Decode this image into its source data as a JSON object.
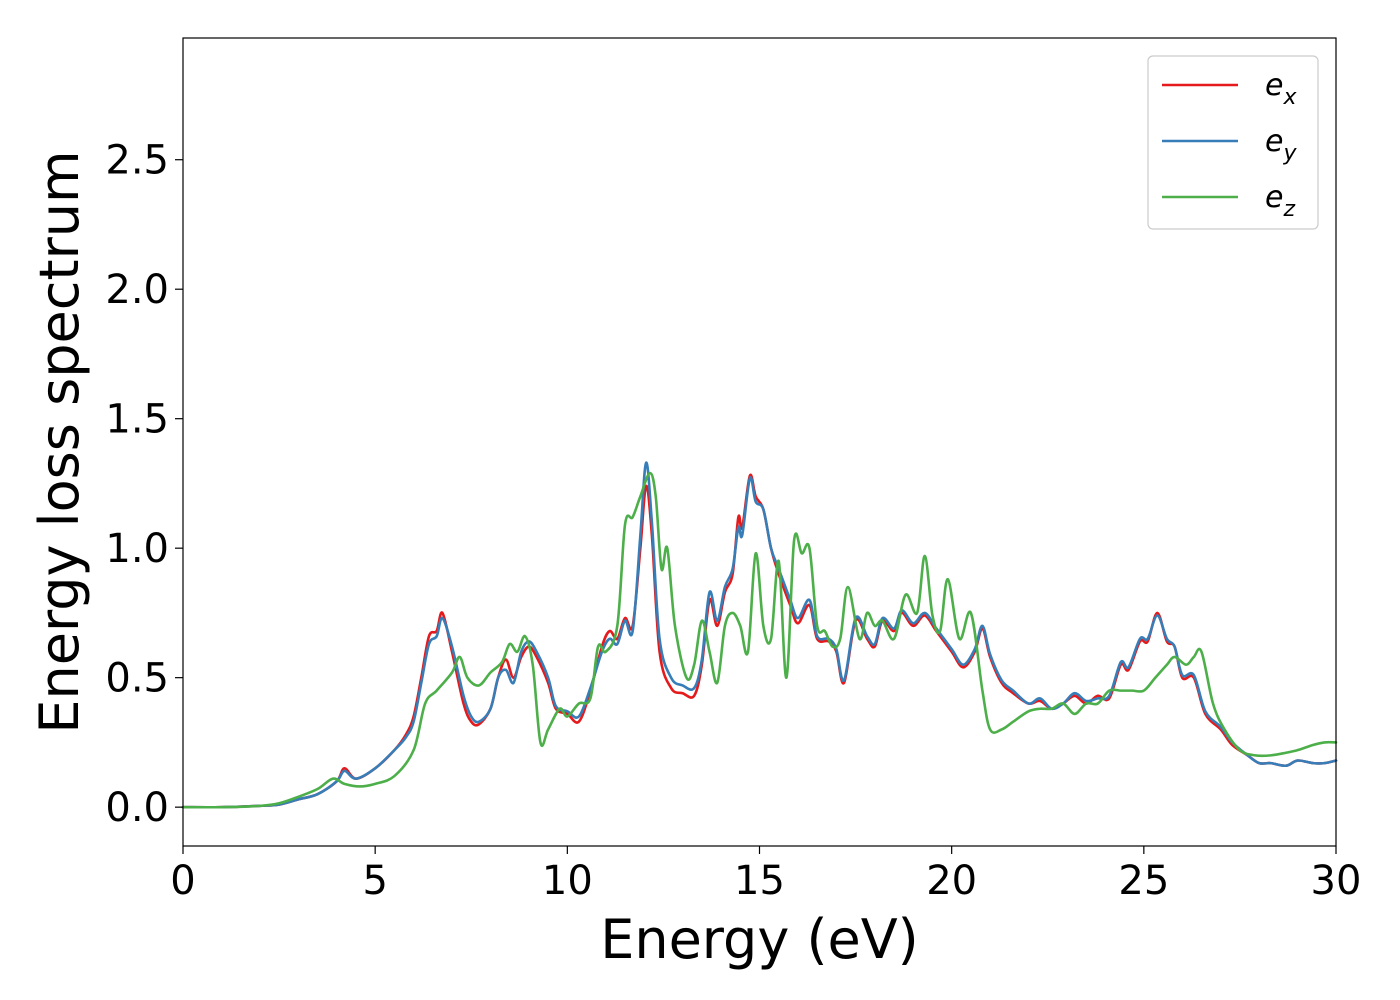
{
  "chart_data": {
    "type": "line",
    "title": "",
    "xlabel": "Energy (eV)",
    "ylabel": "Energy loss spectrum",
    "xlim": [
      0,
      30
    ],
    "ylim": [
      -0.15,
      2.97
    ],
    "xticks": [
      0,
      5,
      10,
      15,
      20,
      25,
      30
    ],
    "xtick_labels": [
      "0",
      "5",
      "10",
      "15",
      "20",
      "25",
      "30"
    ],
    "yticks": [
      0.0,
      0.5,
      1.0,
      1.5,
      2.0,
      2.5
    ],
    "ytick_labels": [
      "0.0",
      "0.5",
      "1.0",
      "1.5",
      "2.0",
      "2.5"
    ],
    "grid": false,
    "legend_position": "top-right",
    "series": [
      {
        "name": "e",
        "subscript": "x",
        "color": "#e41a1c",
        "x": [
          0,
          1,
          2,
          2.5,
          3,
          3.5,
          4,
          4.2,
          4.5,
          5,
          5.5,
          5.8,
          6,
          6.2,
          6.4,
          6.6,
          6.75,
          7,
          7.3,
          7.5,
          7.7,
          8,
          8.2,
          8.4,
          8.6,
          8.8,
          9,
          9.2,
          9.5,
          9.7,
          10,
          10.3,
          10.6,
          10.9,
          11.1,
          11.3,
          11.5,
          11.7,
          11.9,
          12.05,
          12.2,
          12.4,
          12.7,
          13,
          13.3,
          13.5,
          13.7,
          13.9,
          14.1,
          14.3,
          14.45,
          14.55,
          14.75,
          14.9,
          15.1,
          15.3,
          15.5,
          15.8,
          16,
          16.3,
          16.5,
          16.8,
          17,
          17.2,
          17.5,
          17.8,
          18,
          18.2,
          18.5,
          18.7,
          19,
          19.3,
          19.6,
          20,
          20.3,
          20.6,
          20.8,
          21,
          21.3,
          21.6,
          22,
          22.3,
          22.6,
          22.9,
          23.2,
          23.5,
          23.8,
          24.1,
          24.4,
          24.6,
          24.9,
          25.1,
          25.35,
          25.6,
          25.8,
          26,
          26.3,
          26.6,
          27,
          27.3,
          27.7,
          28,
          28.3,
          28.7,
          29,
          29.4,
          29.7,
          30
        ],
        "y": [
          0,
          0,
          0.005,
          0.01,
          0.03,
          0.05,
          0.1,
          0.15,
          0.11,
          0.15,
          0.22,
          0.28,
          0.35,
          0.5,
          0.66,
          0.68,
          0.75,
          0.6,
          0.4,
          0.33,
          0.32,
          0.38,
          0.5,
          0.57,
          0.5,
          0.58,
          0.62,
          0.58,
          0.48,
          0.38,
          0.36,
          0.33,
          0.45,
          0.62,
          0.68,
          0.65,
          0.73,
          0.7,
          1.0,
          1.24,
          1.05,
          0.6,
          0.46,
          0.44,
          0.43,
          0.55,
          0.8,
          0.7,
          0.83,
          0.9,
          1.12,
          1.08,
          1.28,
          1.2,
          1.15,
          1.0,
          0.9,
          0.78,
          0.71,
          0.78,
          0.65,
          0.64,
          0.6,
          0.48,
          0.72,
          0.65,
          0.62,
          0.72,
          0.68,
          0.75,
          0.7,
          0.74,
          0.68,
          0.6,
          0.54,
          0.6,
          0.69,
          0.58,
          0.48,
          0.44,
          0.4,
          0.41,
          0.38,
          0.4,
          0.43,
          0.4,
          0.43,
          0.42,
          0.55,
          0.53,
          0.64,
          0.64,
          0.75,
          0.64,
          0.62,
          0.5,
          0.5,
          0.36,
          0.3,
          0.24,
          0.2,
          0.17,
          0.17,
          0.16,
          0.18,
          0.17,
          0.17,
          0.18
        ]
      },
      {
        "name": "e",
        "subscript": "y",
        "color": "#377eb8",
        "x": [
          0,
          1,
          2,
          2.5,
          3,
          3.5,
          4,
          4.2,
          4.5,
          5,
          5.5,
          5.8,
          6,
          6.2,
          6.4,
          6.6,
          6.75,
          7,
          7.3,
          7.5,
          7.7,
          8,
          8.2,
          8.4,
          8.6,
          8.8,
          9,
          9.2,
          9.5,
          9.7,
          10,
          10.3,
          10.6,
          10.9,
          11.1,
          11.3,
          11.5,
          11.7,
          11.9,
          12.05,
          12.2,
          12.4,
          12.7,
          13,
          13.3,
          13.5,
          13.7,
          13.9,
          14.1,
          14.3,
          14.45,
          14.55,
          14.75,
          14.9,
          15.1,
          15.3,
          15.5,
          15.8,
          16,
          16.3,
          16.5,
          16.8,
          17,
          17.2,
          17.5,
          17.8,
          18,
          18.2,
          18.5,
          18.7,
          19,
          19.3,
          19.6,
          20,
          20.3,
          20.6,
          20.8,
          21,
          21.3,
          21.6,
          22,
          22.3,
          22.6,
          22.9,
          23.2,
          23.5,
          23.8,
          24.1,
          24.4,
          24.6,
          24.9,
          25.1,
          25.35,
          25.6,
          25.8,
          26,
          26.3,
          26.6,
          27,
          27.3,
          27.7,
          28,
          28.3,
          28.7,
          29,
          29.4,
          29.7,
          30
        ],
        "y": [
          0,
          0,
          0.005,
          0.01,
          0.03,
          0.05,
          0.1,
          0.14,
          0.11,
          0.15,
          0.22,
          0.27,
          0.33,
          0.48,
          0.63,
          0.66,
          0.73,
          0.62,
          0.43,
          0.35,
          0.33,
          0.38,
          0.5,
          0.53,
          0.48,
          0.6,
          0.64,
          0.6,
          0.5,
          0.39,
          0.37,
          0.35,
          0.46,
          0.6,
          0.65,
          0.63,
          0.72,
          0.68,
          1.05,
          1.33,
          1.1,
          0.65,
          0.5,
          0.47,
          0.46,
          0.57,
          0.83,
          0.72,
          0.85,
          0.92,
          1.08,
          1.05,
          1.27,
          1.18,
          1.15,
          1.0,
          0.92,
          0.8,
          0.73,
          0.8,
          0.66,
          0.65,
          0.61,
          0.49,
          0.73,
          0.66,
          0.63,
          0.73,
          0.69,
          0.76,
          0.71,
          0.75,
          0.69,
          0.61,
          0.55,
          0.61,
          0.7,
          0.59,
          0.49,
          0.45,
          0.4,
          0.42,
          0.38,
          0.4,
          0.44,
          0.41,
          0.42,
          0.43,
          0.56,
          0.54,
          0.65,
          0.65,
          0.74,
          0.65,
          0.62,
          0.51,
          0.51,
          0.37,
          0.31,
          0.25,
          0.2,
          0.17,
          0.17,
          0.16,
          0.18,
          0.17,
          0.17,
          0.18
        ]
      },
      {
        "name": "e",
        "subscript": "z",
        "color": "#4daf4a",
        "x": [
          0,
          1,
          2,
          2.5,
          3,
          3.5,
          3.9,
          4.2,
          4.6,
          5,
          5.5,
          6,
          6.3,
          6.6,
          7,
          7.2,
          7.4,
          7.7,
          8,
          8.3,
          8.5,
          8.7,
          8.9,
          9.1,
          9.3,
          9.5,
          9.8,
          10,
          10.3,
          10.6,
          10.8,
          11,
          11.3,
          11.5,
          11.7,
          11.9,
          12.15,
          12.3,
          12.45,
          12.6,
          12.8,
          13.1,
          13.3,
          13.5,
          13.7,
          13.9,
          14.1,
          14.3,
          14.5,
          14.7,
          14.9,
          15.1,
          15.3,
          15.5,
          15.7,
          15.9,
          16.1,
          16.3,
          16.5,
          16.7,
          16.9,
          17.1,
          17.3,
          17.6,
          17.8,
          18,
          18.2,
          18.5,
          18.8,
          19.1,
          19.3,
          19.5,
          19.7,
          19.9,
          20.2,
          20.5,
          20.8,
          21,
          21.3,
          21.6,
          22,
          22.3,
          22.6,
          22.9,
          23.2,
          23.5,
          23.8,
          24.1,
          24.4,
          24.7,
          25,
          25.3,
          25.6,
          25.8,
          26.1,
          26.3,
          26.5,
          26.8,
          27.1,
          27.5,
          27.9,
          28.3,
          28.7,
          29,
          29.4,
          29.7,
          30
        ],
        "y": [
          0,
          0,
          0.005,
          0.015,
          0.04,
          0.07,
          0.11,
          0.09,
          0.08,
          0.09,
          0.12,
          0.22,
          0.4,
          0.45,
          0.52,
          0.58,
          0.5,
          0.47,
          0.52,
          0.56,
          0.63,
          0.6,
          0.66,
          0.55,
          0.25,
          0.3,
          0.38,
          0.35,
          0.4,
          0.42,
          0.62,
          0.6,
          0.7,
          1.09,
          1.12,
          1.2,
          1.29,
          1.2,
          0.92,
          1.0,
          0.7,
          0.5,
          0.55,
          0.72,
          0.6,
          0.48,
          0.7,
          0.75,
          0.7,
          0.6,
          0.98,
          0.7,
          0.65,
          0.95,
          0.5,
          1.03,
          0.98,
          1.0,
          0.7,
          0.68,
          0.62,
          0.65,
          0.85,
          0.65,
          0.75,
          0.7,
          0.72,
          0.65,
          0.82,
          0.75,
          0.97,
          0.74,
          0.68,
          0.88,
          0.65,
          0.75,
          0.45,
          0.3,
          0.3,
          0.33,
          0.37,
          0.38,
          0.38,
          0.4,
          0.36,
          0.4,
          0.4,
          0.45,
          0.45,
          0.45,
          0.45,
          0.5,
          0.55,
          0.58,
          0.55,
          0.58,
          0.6,
          0.4,
          0.3,
          0.22,
          0.2,
          0.2,
          0.21,
          0.22,
          0.24,
          0.25,
          0.25
        ]
      }
    ]
  }
}
